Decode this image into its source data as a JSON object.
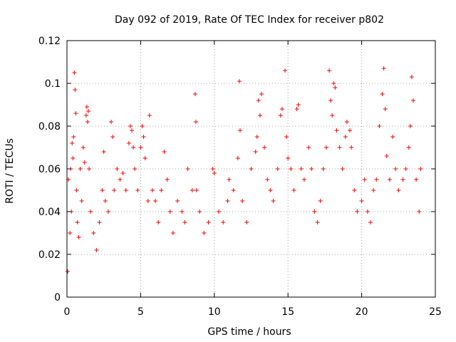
{
  "chart_data": {
    "type": "scatter",
    "title": "Day 092 of 2019, Rate Of TEC Index for receiver p802",
    "xlabel": "GPS time / hours",
    "ylabel": "ROTI / TECUs",
    "xlim": [
      0,
      25
    ],
    "ylim": [
      0,
      0.12
    ],
    "x_ticks": [
      0,
      5,
      10,
      15,
      20,
      25
    ],
    "x_tick_labels": [
      "0",
      "5",
      "10",
      "15",
      "20",
      "25"
    ],
    "y_ticks": [
      0,
      0.02,
      0.04,
      0.06,
      0.08,
      0.1,
      0.12
    ],
    "y_tick_labels": [
      "0",
      "0.02",
      "0.04",
      "0.06",
      "0.08",
      "0.1",
      "0.12"
    ],
    "grid": true,
    "marker": "+",
    "color": "#ff0000",
    "series": [
      {
        "name": "ROTI",
        "points": [
          [
            0.05,
            0.012
          ],
          [
            0.1,
            0.055
          ],
          [
            0.2,
            0.03
          ],
          [
            0.25,
            0.06
          ],
          [
            0.3,
            0.04
          ],
          [
            0.35,
            0.072
          ],
          [
            0.4,
            0.065
          ],
          [
            0.45,
            0.075
          ],
          [
            0.5,
            0.105
          ],
          [
            0.55,
            0.097
          ],
          [
            0.6,
            0.086
          ],
          [
            0.65,
            0.05
          ],
          [
            0.7,
            0.035
          ],
          [
            0.8,
            0.028
          ],
          [
            0.9,
            0.06
          ],
          [
            1.0,
            0.045
          ],
          [
            1.1,
            0.07
          ],
          [
            1.2,
            0.063
          ],
          [
            1.3,
            0.085
          ],
          [
            1.35,
            0.089
          ],
          [
            1.4,
            0.082
          ],
          [
            1.45,
            0.087
          ],
          [
            1.5,
            0.06
          ],
          [
            1.6,
            0.04
          ],
          [
            1.8,
            0.03
          ],
          [
            2.0,
            0.022
          ],
          [
            2.2,
            0.035
          ],
          [
            2.4,
            0.05
          ],
          [
            2.5,
            0.068
          ],
          [
            2.6,
            0.045
          ],
          [
            2.8,
            0.04
          ],
          [
            3.0,
            0.082
          ],
          [
            3.1,
            0.075
          ],
          [
            3.2,
            0.05
          ],
          [
            3.4,
            0.06
          ],
          [
            3.6,
            0.055
          ],
          [
            3.8,
            0.058
          ],
          [
            4.0,
            0.05
          ],
          [
            4.2,
            0.072
          ],
          [
            4.3,
            0.08
          ],
          [
            4.4,
            0.078
          ],
          [
            4.5,
            0.07
          ],
          [
            4.6,
            0.06
          ],
          [
            4.8,
            0.05
          ],
          [
            5.0,
            0.07
          ],
          [
            5.1,
            0.08
          ],
          [
            5.2,
            0.075
          ],
          [
            5.3,
            0.065
          ],
          [
            5.5,
            0.045
          ],
          [
            5.6,
            0.085
          ],
          [
            5.8,
            0.05
          ],
          [
            6.0,
            0.045
          ],
          [
            6.2,
            0.035
          ],
          [
            6.4,
            0.05
          ],
          [
            6.6,
            0.068
          ],
          [
            6.8,
            0.055
          ],
          [
            7.0,
            0.04
          ],
          [
            7.2,
            0.03
          ],
          [
            7.5,
            0.045
          ],
          [
            7.8,
            0.04
          ],
          [
            8.0,
            0.035
          ],
          [
            8.2,
            0.06
          ],
          [
            8.5,
            0.05
          ],
          [
            8.7,
            0.095
          ],
          [
            8.75,
            0.082
          ],
          [
            8.8,
            0.05
          ],
          [
            9.0,
            0.04
          ],
          [
            9.3,
            0.03
          ],
          [
            9.6,
            0.035
          ],
          [
            9.9,
            0.06
          ],
          [
            10.0,
            0.058
          ],
          [
            10.3,
            0.04
          ],
          [
            10.6,
            0.035
          ],
          [
            10.9,
            0.045
          ],
          [
            11.0,
            0.055
          ],
          [
            11.3,
            0.05
          ],
          [
            11.6,
            0.065
          ],
          [
            11.7,
            0.101
          ],
          [
            11.75,
            0.078
          ],
          [
            11.9,
            0.045
          ],
          [
            12.2,
            0.035
          ],
          [
            12.5,
            0.06
          ],
          [
            12.8,
            0.068
          ],
          [
            12.9,
            0.075
          ],
          [
            13.0,
            0.092
          ],
          [
            13.1,
            0.085
          ],
          [
            13.2,
            0.095
          ],
          [
            13.4,
            0.07
          ],
          [
            13.6,
            0.055
          ],
          [
            13.8,
            0.05
          ],
          [
            14.0,
            0.045
          ],
          [
            14.3,
            0.06
          ],
          [
            14.5,
            0.085
          ],
          [
            14.6,
            0.088
          ],
          [
            14.8,
            0.106
          ],
          [
            14.9,
            0.075
          ],
          [
            15.0,
            0.065
          ],
          [
            15.2,
            0.06
          ],
          [
            15.4,
            0.05
          ],
          [
            15.6,
            0.088
          ],
          [
            15.7,
            0.09
          ],
          [
            15.9,
            0.06
          ],
          [
            16.1,
            0.055
          ],
          [
            16.4,
            0.07
          ],
          [
            16.6,
            0.06
          ],
          [
            16.8,
            0.04
          ],
          [
            17.0,
            0.035
          ],
          [
            17.2,
            0.045
          ],
          [
            17.4,
            0.06
          ],
          [
            17.6,
            0.07
          ],
          [
            17.8,
            0.106
          ],
          [
            17.9,
            0.092
          ],
          [
            18.0,
            0.085
          ],
          [
            18.1,
            0.1
          ],
          [
            18.2,
            0.098
          ],
          [
            18.3,
            0.078
          ],
          [
            18.5,
            0.07
          ],
          [
            18.7,
            0.06
          ],
          [
            18.9,
            0.075
          ],
          [
            19.0,
            0.082
          ],
          [
            19.2,
            0.078
          ],
          [
            19.3,
            0.07
          ],
          [
            19.5,
            0.05
          ],
          [
            19.7,
            0.04
          ],
          [
            20.0,
            0.045
          ],
          [
            20.2,
            0.055
          ],
          [
            20.4,
            0.04
          ],
          [
            20.6,
            0.035
          ],
          [
            20.8,
            0.05
          ],
          [
            21.0,
            0.055
          ],
          [
            21.2,
            0.08
          ],
          [
            21.4,
            0.095
          ],
          [
            21.5,
            0.107
          ],
          [
            21.6,
            0.088
          ],
          [
            21.7,
            0.066
          ],
          [
            21.9,
            0.055
          ],
          [
            22.1,
            0.075
          ],
          [
            22.3,
            0.06
          ],
          [
            22.5,
            0.05
          ],
          [
            22.8,
            0.055
          ],
          [
            23.0,
            0.06
          ],
          [
            23.2,
            0.07
          ],
          [
            23.3,
            0.08
          ],
          [
            23.4,
            0.103
          ],
          [
            23.5,
            0.092
          ],
          [
            23.7,
            0.055
          ],
          [
            23.9,
            0.04
          ],
          [
            24.0,
            0.06
          ]
        ]
      }
    ]
  }
}
